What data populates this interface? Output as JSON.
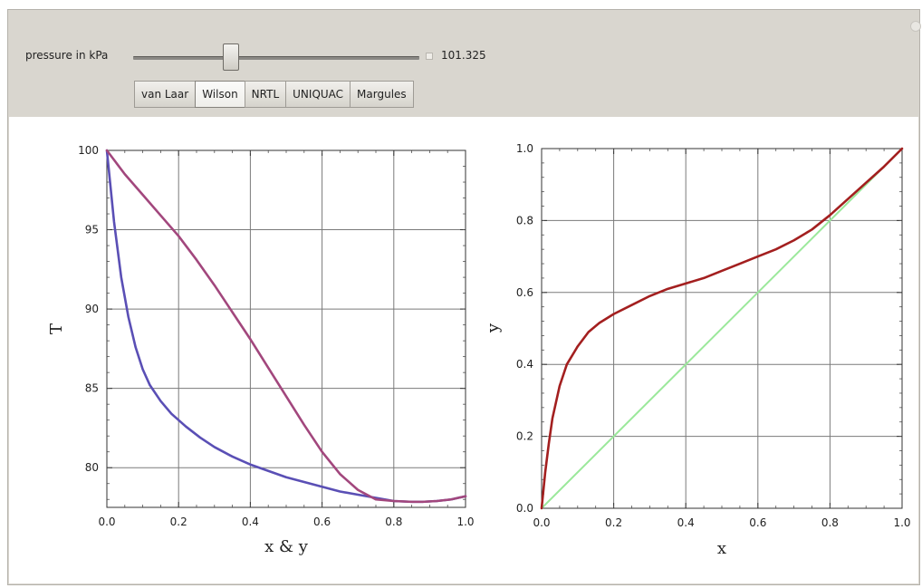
{
  "controls": {
    "slider_label": "pressure in kPa",
    "slider_value": "101.325",
    "setters": [
      {
        "label": "van Laar",
        "selected": false
      },
      {
        "label": "Wilson",
        "selected": true
      },
      {
        "label": "NRTL",
        "selected": false
      },
      {
        "label": "UNIQUAC",
        "selected": false
      },
      {
        "label": "Margules",
        "selected": false
      }
    ]
  },
  "chart_data": [
    {
      "type": "line",
      "xlabel": "x & y",
      "ylabel": "T",
      "xlim": [
        0,
        1
      ],
      "ylim": [
        77.5,
        100
      ],
      "x_ticks": [
        "0.0",
        "0.2",
        "0.4",
        "0.6",
        "0.8",
        "1.0"
      ],
      "y_ticks": [
        "80",
        "85",
        "90",
        "95",
        "100"
      ],
      "grid": true,
      "series": [
        {
          "color": "#5a4fb5",
          "x": [
            0,
            0.02,
            0.04,
            0.06,
            0.08,
            0.1,
            0.12,
            0.15,
            0.18,
            0.22,
            0.26,
            0.3,
            0.35,
            0.4,
            0.45,
            0.5,
            0.55,
            0.6,
            0.65,
            0.7,
            0.75,
            0.8,
            0.85,
            0.88,
            0.92,
            0.96,
            1.0
          ],
          "y": [
            100,
            95.5,
            92.0,
            89.5,
            87.6,
            86.2,
            85.2,
            84.2,
            83.4,
            82.6,
            81.9,
            81.3,
            80.7,
            80.2,
            79.8,
            79.4,
            79.1,
            78.8,
            78.5,
            78.3,
            78.1,
            77.9,
            77.85,
            77.85,
            77.9,
            78.0,
            78.2
          ]
        },
        {
          "color": "#a2477d",
          "x": [
            0,
            0.05,
            0.1,
            0.15,
            0.2,
            0.25,
            0.3,
            0.35,
            0.4,
            0.45,
            0.5,
            0.55,
            0.6,
            0.65,
            0.7,
            0.75,
            0.8,
            0.85,
            0.88,
            0.92,
            0.96,
            1.0
          ],
          "y": [
            100,
            98.5,
            97.2,
            95.9,
            94.6,
            93.1,
            91.5,
            89.8,
            88.1,
            86.3,
            84.5,
            82.7,
            81.0,
            79.6,
            78.6,
            78.0,
            77.9,
            77.85,
            77.85,
            77.9,
            78.0,
            78.2
          ]
        }
      ]
    },
    {
      "type": "line",
      "xlabel": "x",
      "ylabel": "y",
      "xlim": [
        0,
        1
      ],
      "ylim": [
        0,
        1
      ],
      "x_ticks": [
        "0.0",
        "0.2",
        "0.4",
        "0.6",
        "0.8",
        "1.0"
      ],
      "y_ticks": [
        "0.0",
        "0.2",
        "0.4",
        "0.6",
        "0.8",
        "1.0"
      ],
      "grid": true,
      "series": [
        {
          "color": "#a31f1f",
          "x": [
            0,
            0.005,
            0.01,
            0.02,
            0.03,
            0.05,
            0.07,
            0.1,
            0.13,
            0.16,
            0.2,
            0.25,
            0.3,
            0.35,
            0.4,
            0.45,
            0.5,
            0.55,
            0.6,
            0.65,
            0.7,
            0.75,
            0.8,
            0.85,
            0.9,
            0.95,
            1.0
          ],
          "y": [
            0,
            0.05,
            0.1,
            0.18,
            0.25,
            0.34,
            0.4,
            0.45,
            0.49,
            0.515,
            0.54,
            0.565,
            0.59,
            0.61,
            0.625,
            0.64,
            0.66,
            0.68,
            0.7,
            0.72,
            0.745,
            0.775,
            0.815,
            0.86,
            0.905,
            0.95,
            1.0
          ]
        },
        {
          "color": "#9be89b",
          "x": [
            0,
            1
          ],
          "y": [
            0,
            1
          ]
        }
      ]
    }
  ]
}
